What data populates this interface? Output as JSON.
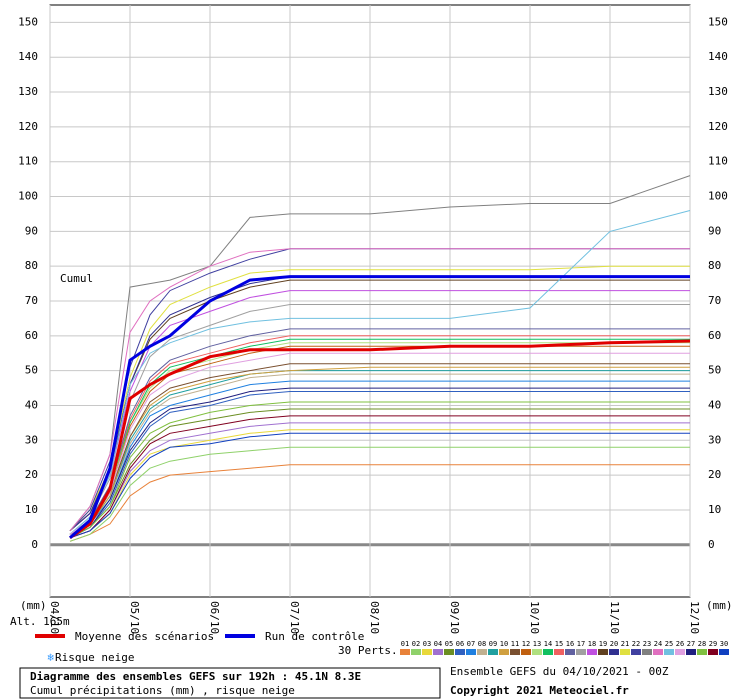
{
  "chart_data": {
    "type": "line",
    "title": "Diagramme des ensembles GEFS sur 192h : 45.1N 8.3E",
    "subtitle": "Cumul précipitations (mm) , risque neige",
    "annotation": "Cumul",
    "y_label": "(mm)",
    "altitude": "Alt. 165m",
    "perts_label": "30 Perts.",
    "snow_label": "Risque neige",
    "run_info": "Ensemble GEFS du 04/10/2021 - 00Z",
    "copyright": "Copyright 2021 Meteociel.fr",
    "grid": true,
    "xlim": [
      0,
      192
    ],
    "xticks": [
      {
        "value": 0,
        "label": "04/10"
      },
      {
        "value": 24,
        "label": "05/10"
      },
      {
        "value": 48,
        "label": "06/10"
      },
      {
        "value": 72,
        "label": "07/10"
      },
      {
        "value": 96,
        "label": "08/10"
      },
      {
        "value": 120,
        "label": "09/10"
      },
      {
        "value": 144,
        "label": "10/10"
      },
      {
        "value": 168,
        "label": "11/10"
      },
      {
        "value": 192,
        "label": "12/10"
      }
    ],
    "ylim": [
      -15,
      155
    ],
    "yticks": [
      0,
      10,
      20,
      30,
      40,
      50,
      60,
      70,
      80,
      90,
      100,
      110,
      120,
      130,
      140,
      150
    ],
    "x": [
      6,
      12,
      18,
      24,
      30,
      36,
      48,
      60,
      72,
      96,
      120,
      144,
      168,
      192
    ],
    "series": [
      {
        "name": "01",
        "color": "#e8823a",
        "values": [
          1,
          3,
          6,
          14,
          18,
          20,
          21,
          22,
          23,
          23,
          23,
          23,
          23,
          23
        ]
      },
      {
        "name": "02",
        "color": "#8fd16a",
        "values": [
          1,
          3,
          8,
          17,
          22,
          24,
          26,
          27,
          28,
          28,
          28,
          28,
          28,
          28
        ]
      },
      {
        "name": "03",
        "color": "#e8d83a",
        "values": [
          2,
          4,
          9,
          20,
          26,
          28,
          30,
          32,
          33,
          33,
          33,
          33,
          33,
          33
        ]
      },
      {
        "name": "04",
        "color": "#a070d0",
        "values": [
          2,
          4,
          10,
          21,
          27,
          30,
          32,
          34,
          35,
          35,
          35,
          35,
          35,
          35
        ]
      },
      {
        "name": "05",
        "color": "#6b8e23",
        "values": [
          2,
          5,
          11,
          23,
          30,
          34,
          36,
          38,
          39,
          39,
          39,
          39,
          39,
          39
        ]
      },
      {
        "name": "06",
        "color": "#3060c0",
        "values": [
          2,
          5,
          12,
          26,
          34,
          38,
          40,
          43,
          44,
          44,
          44,
          44,
          44,
          44
        ]
      },
      {
        "name": "07",
        "color": "#2080e0",
        "values": [
          2,
          6,
          13,
          28,
          37,
          40,
          43,
          46,
          47,
          47,
          47,
          47,
          47,
          47
        ]
      },
      {
        "name": "08",
        "color": "#c0b090",
        "values": [
          2,
          6,
          14,
          29,
          38,
          42,
          45,
          48,
          49,
          49,
          49,
          49,
          49,
          49
        ]
      },
      {
        "name": "09",
        "color": "#20a0a0",
        "values": [
          3,
          6,
          14,
          30,
          39,
          43,
          46,
          49,
          50,
          50,
          50,
          50,
          50,
          50
        ]
      },
      {
        "name": "10",
        "color": "#d0a040",
        "values": [
          3,
          6,
          14,
          31,
          40,
          44,
          47,
          49,
          50,
          51,
          51,
          51,
          51,
          51
        ]
      },
      {
        "name": "11",
        "color": "#7a5030",
        "values": [
          3,
          6,
          15,
          31,
          41,
          45,
          48,
          50,
          52,
          52,
          52,
          52,
          52,
          52
        ]
      },
      {
        "name": "12",
        "color": "#c06010",
        "values": [
          3,
          7,
          16,
          34,
          44,
          49,
          52,
          55,
          57,
          57,
          57,
          57,
          57,
          57
        ]
      },
      {
        "name": "13",
        "color": "#b0e080",
        "values": [
          3,
          7,
          16,
          35,
          45,
          50,
          53,
          56,
          58,
          58,
          58,
          58,
          58,
          58
        ]
      },
      {
        "name": "14",
        "color": "#10c060",
        "values": [
          3,
          7,
          17,
          35,
          46,
          51,
          54,
          57,
          59,
          59,
          59,
          59,
          59,
          59
        ]
      },
      {
        "name": "15",
        "color": "#f06060",
        "values": [
          3,
          7,
          17,
          36,
          47,
          52,
          55,
          58,
          60,
          60,
          60,
          60,
          60,
          60
        ]
      },
      {
        "name": "16",
        "color": "#6060a0",
        "values": [
          3,
          7,
          17,
          37,
          48,
          53,
          57,
          60,
          62,
          62,
          62,
          62,
          62,
          62
        ]
      },
      {
        "name": "17",
        "color": "#a0a0a0",
        "values": [
          3,
          8,
          19,
          41,
          54,
          59,
          63,
          67,
          69,
          69,
          69,
          69,
          69,
          69
        ]
      },
      {
        "name": "18",
        "color": "#c050e0",
        "values": [
          4,
          9,
          20,
          44,
          57,
          63,
          67,
          71,
          73,
          73,
          73,
          73,
          73,
          73
        ]
      },
      {
        "name": "19",
        "color": "#604020",
        "values": [
          4,
          9,
          21,
          46,
          59,
          65,
          70,
          74,
          76,
          76,
          76,
          76,
          76,
          76
        ]
      },
      {
        "name": "20",
        "color": "#303090",
        "values": [
          4,
          9,
          22,
          46,
          60,
          66,
          71,
          75,
          77,
          77,
          77,
          77,
          77,
          77
        ]
      },
      {
        "name": "21",
        "color": "#e0e040",
        "values": [
          4,
          10,
          22,
          48,
          62,
          69,
          74,
          78,
          79,
          79,
          79,
          79,
          80,
          80
        ]
      },
      {
        "name": "22",
        "color": "#4040a0",
        "values": [
          4,
          10,
          24,
          51,
          66,
          73,
          78,
          82,
          85,
          85,
          85,
          85,
          85,
          85
        ]
      },
      {
        "name": "23",
        "color": "#808080",
        "values": [
          4,
          11,
          26,
          74,
          75,
          76,
          80,
          94,
          95,
          95,
          97,
          98,
          98,
          106
        ]
      },
      {
        "name": "24",
        "color": "#e070c0",
        "values": [
          4,
          11,
          26,
          61,
          70,
          74,
          80,
          84,
          85,
          85,
          85,
          85,
          85,
          85
        ]
      },
      {
        "name": "25",
        "color": "#70c0e0",
        "values": [
          3,
          8,
          20,
          46,
          55,
          58,
          62,
          64,
          65,
          65,
          65,
          68,
          90,
          96
        ]
      },
      {
        "name": "26",
        "color": "#e0a0e0",
        "values": [
          3,
          7,
          15,
          33,
          43,
          47,
          51,
          53,
          55,
          55,
          55,
          55,
          55,
          55
        ]
      },
      {
        "name": "27",
        "color": "#202080",
        "values": [
          2,
          5,
          13,
          27,
          35,
          39,
          41,
          44,
          45,
          45,
          45,
          45,
          45,
          45
        ]
      },
      {
        "name": "28",
        "color": "#80c040",
        "values": [
          2,
          5,
          11,
          25,
          32,
          35,
          38,
          40,
          41,
          41,
          41,
          41,
          41,
          41
        ]
      },
      {
        "name": "29",
        "color": "#800020",
        "values": [
          2,
          4,
          10,
          22,
          29,
          32,
          34,
          36,
          37,
          37,
          37,
          37,
          37,
          37
        ]
      },
      {
        "name": "30",
        "color": "#1040c0",
        "values": [
          2,
          4,
          9,
          19,
          25,
          28,
          29,
          31,
          32,
          32,
          32,
          32,
          32,
          32
        ]
      },
      {
        "name": "Moyenne des scénarios",
        "color": "#e00000",
        "line_width": 3,
        "values": [
          2,
          6,
          16,
          42,
          46,
          49,
          54,
          56,
          56,
          56,
          57,
          57,
          58,
          58.5
        ]
      },
      {
        "name": "Run de contrôle",
        "color": "#0000e0",
        "line_width": 3,
        "values": [
          2,
          7,
          22,
          53,
          57,
          60,
          70,
          76,
          77,
          77,
          77,
          77,
          77,
          77
        ]
      }
    ]
  }
}
